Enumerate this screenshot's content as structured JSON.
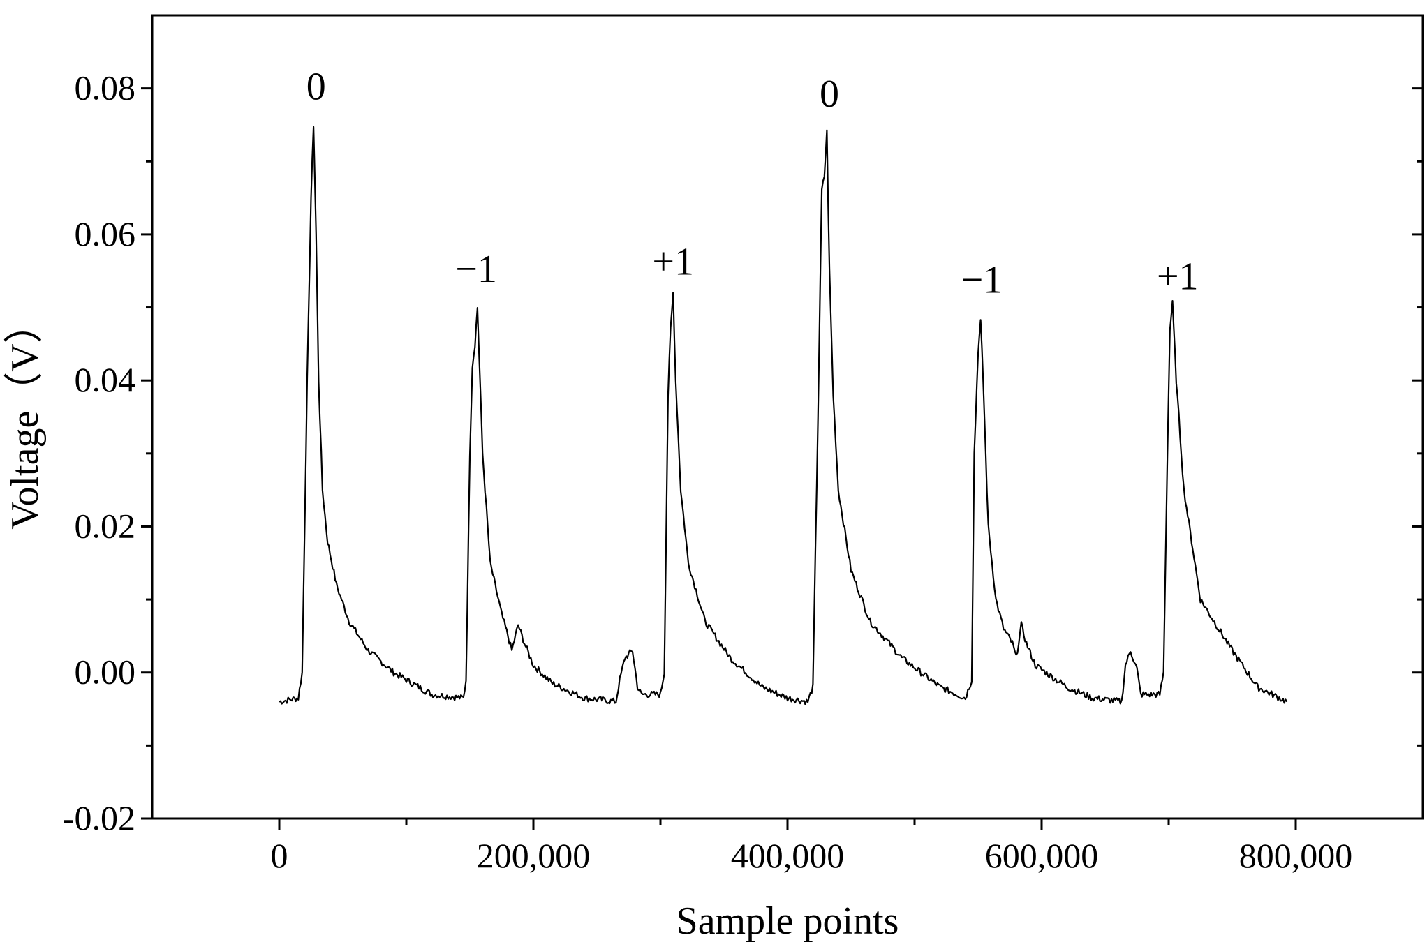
{
  "chart_data": {
    "type": "line",
    "xlabel": "Sample points",
    "ylabel": "Voltage（V）",
    "xlim": [
      -100000,
      900000
    ],
    "ylim": [
      -0.02,
      0.09
    ],
    "x_ticks": [
      0,
      200000,
      400000,
      600000,
      800000
    ],
    "x_tick_labels": [
      "0",
      "200,000",
      "400,000",
      "600,000",
      "800,000"
    ],
    "x_minor_ticks": [
      100000,
      300000,
      500000,
      700000
    ],
    "y_ticks": [
      -0.02,
      0.0,
      0.02,
      0.04,
      0.06,
      0.08
    ],
    "y_tick_labels": [
      "-0.02",
      "0.00",
      "0.02",
      "0.04",
      "0.06",
      "0.08"
    ],
    "y_minor_ticks": [
      -0.01,
      0.01,
      0.03,
      0.05,
      0.07
    ],
    "grid": false,
    "line_color": "#000000",
    "series": [
      {
        "x": [
          0,
          15000,
          18000,
          22000,
          25000,
          27000,
          29000,
          31000,
          34000,
          38000,
          45000,
          55000,
          70000,
          90000,
          120000,
          145000,
          147000,
          150000,
          152000,
          154000,
          156000,
          160000,
          166000,
          175000,
          180000,
          183000,
          188000,
          193000,
          200000,
          215000,
          240000,
          265000,
          268000,
          272000,
          278000,
          282000,
          285000,
          300000,
          303000,
          306000,
          308000,
          310000,
          312000,
          316000,
          322000,
          335000,
          355000,
          380000,
          400000,
          416000,
          420000,
          424000,
          427000,
          429000,
          431000,
          433000,
          436000,
          440000,
          450000,
          465000,
          490000,
          520000,
          540000,
          545000,
          547000,
          550000,
          552000,
          554000,
          558000,
          564000,
          570000,
          577000,
          580000,
          584000,
          588000,
          595000,
          620000,
          640000,
          663000,
          666000,
          670000,
          675000,
          678000,
          693000,
          696000,
          699000,
          701000,
          703000,
          706000,
          712000,
          725000,
          750000,
          770000,
          793000
        ],
        "y": [
          -0.004,
          -0.0035,
          0.0,
          0.04,
          0.065,
          0.075,
          0.06,
          0.04,
          0.025,
          0.018,
          0.012,
          0.007,
          0.003,
          0.0,
          -0.003,
          -0.0035,
          -0.001,
          0.03,
          0.042,
          0.045,
          0.05,
          0.03,
          0.015,
          0.008,
          0.005,
          0.003,
          0.0065,
          0.004,
          0.001,
          -0.0015,
          -0.0035,
          -0.004,
          -0.001,
          0.002,
          0.003,
          -0.002,
          -0.003,
          -0.003,
          0.0,
          0.038,
          0.047,
          0.052,
          0.04,
          0.025,
          0.015,
          0.007,
          0.002,
          -0.002,
          -0.0035,
          -0.004,
          -0.002,
          0.035,
          0.066,
          0.068,
          0.074,
          0.055,
          0.038,
          0.025,
          0.014,
          0.007,
          0.002,
          -0.002,
          -0.0035,
          -0.001,
          0.03,
          0.044,
          0.048,
          0.04,
          0.02,
          0.01,
          0.006,
          0.004,
          0.002,
          0.0065,
          0.004,
          0.001,
          -0.002,
          -0.0035,
          -0.004,
          0.001,
          0.003,
          0.0005,
          -0.003,
          -0.003,
          0.0,
          0.03,
          0.047,
          0.0505,
          0.04,
          0.025,
          0.01,
          0.003,
          -0.002,
          -0.004
        ]
      }
    ],
    "annotations": [
      {
        "text": "0",
        "x": 29000,
        "y": 0.0785
      },
      {
        "text": "−1",
        "x": 155000,
        "y": 0.0535
      },
      {
        "text": "+1",
        "x": 310000,
        "y": 0.0545
      },
      {
        "text": "0",
        "x": 433000,
        "y": 0.0775
      },
      {
        "text": "−1",
        "x": 553000,
        "y": 0.052
      },
      {
        "text": "+1",
        "x": 707000,
        "y": 0.0525
      }
    ]
  }
}
